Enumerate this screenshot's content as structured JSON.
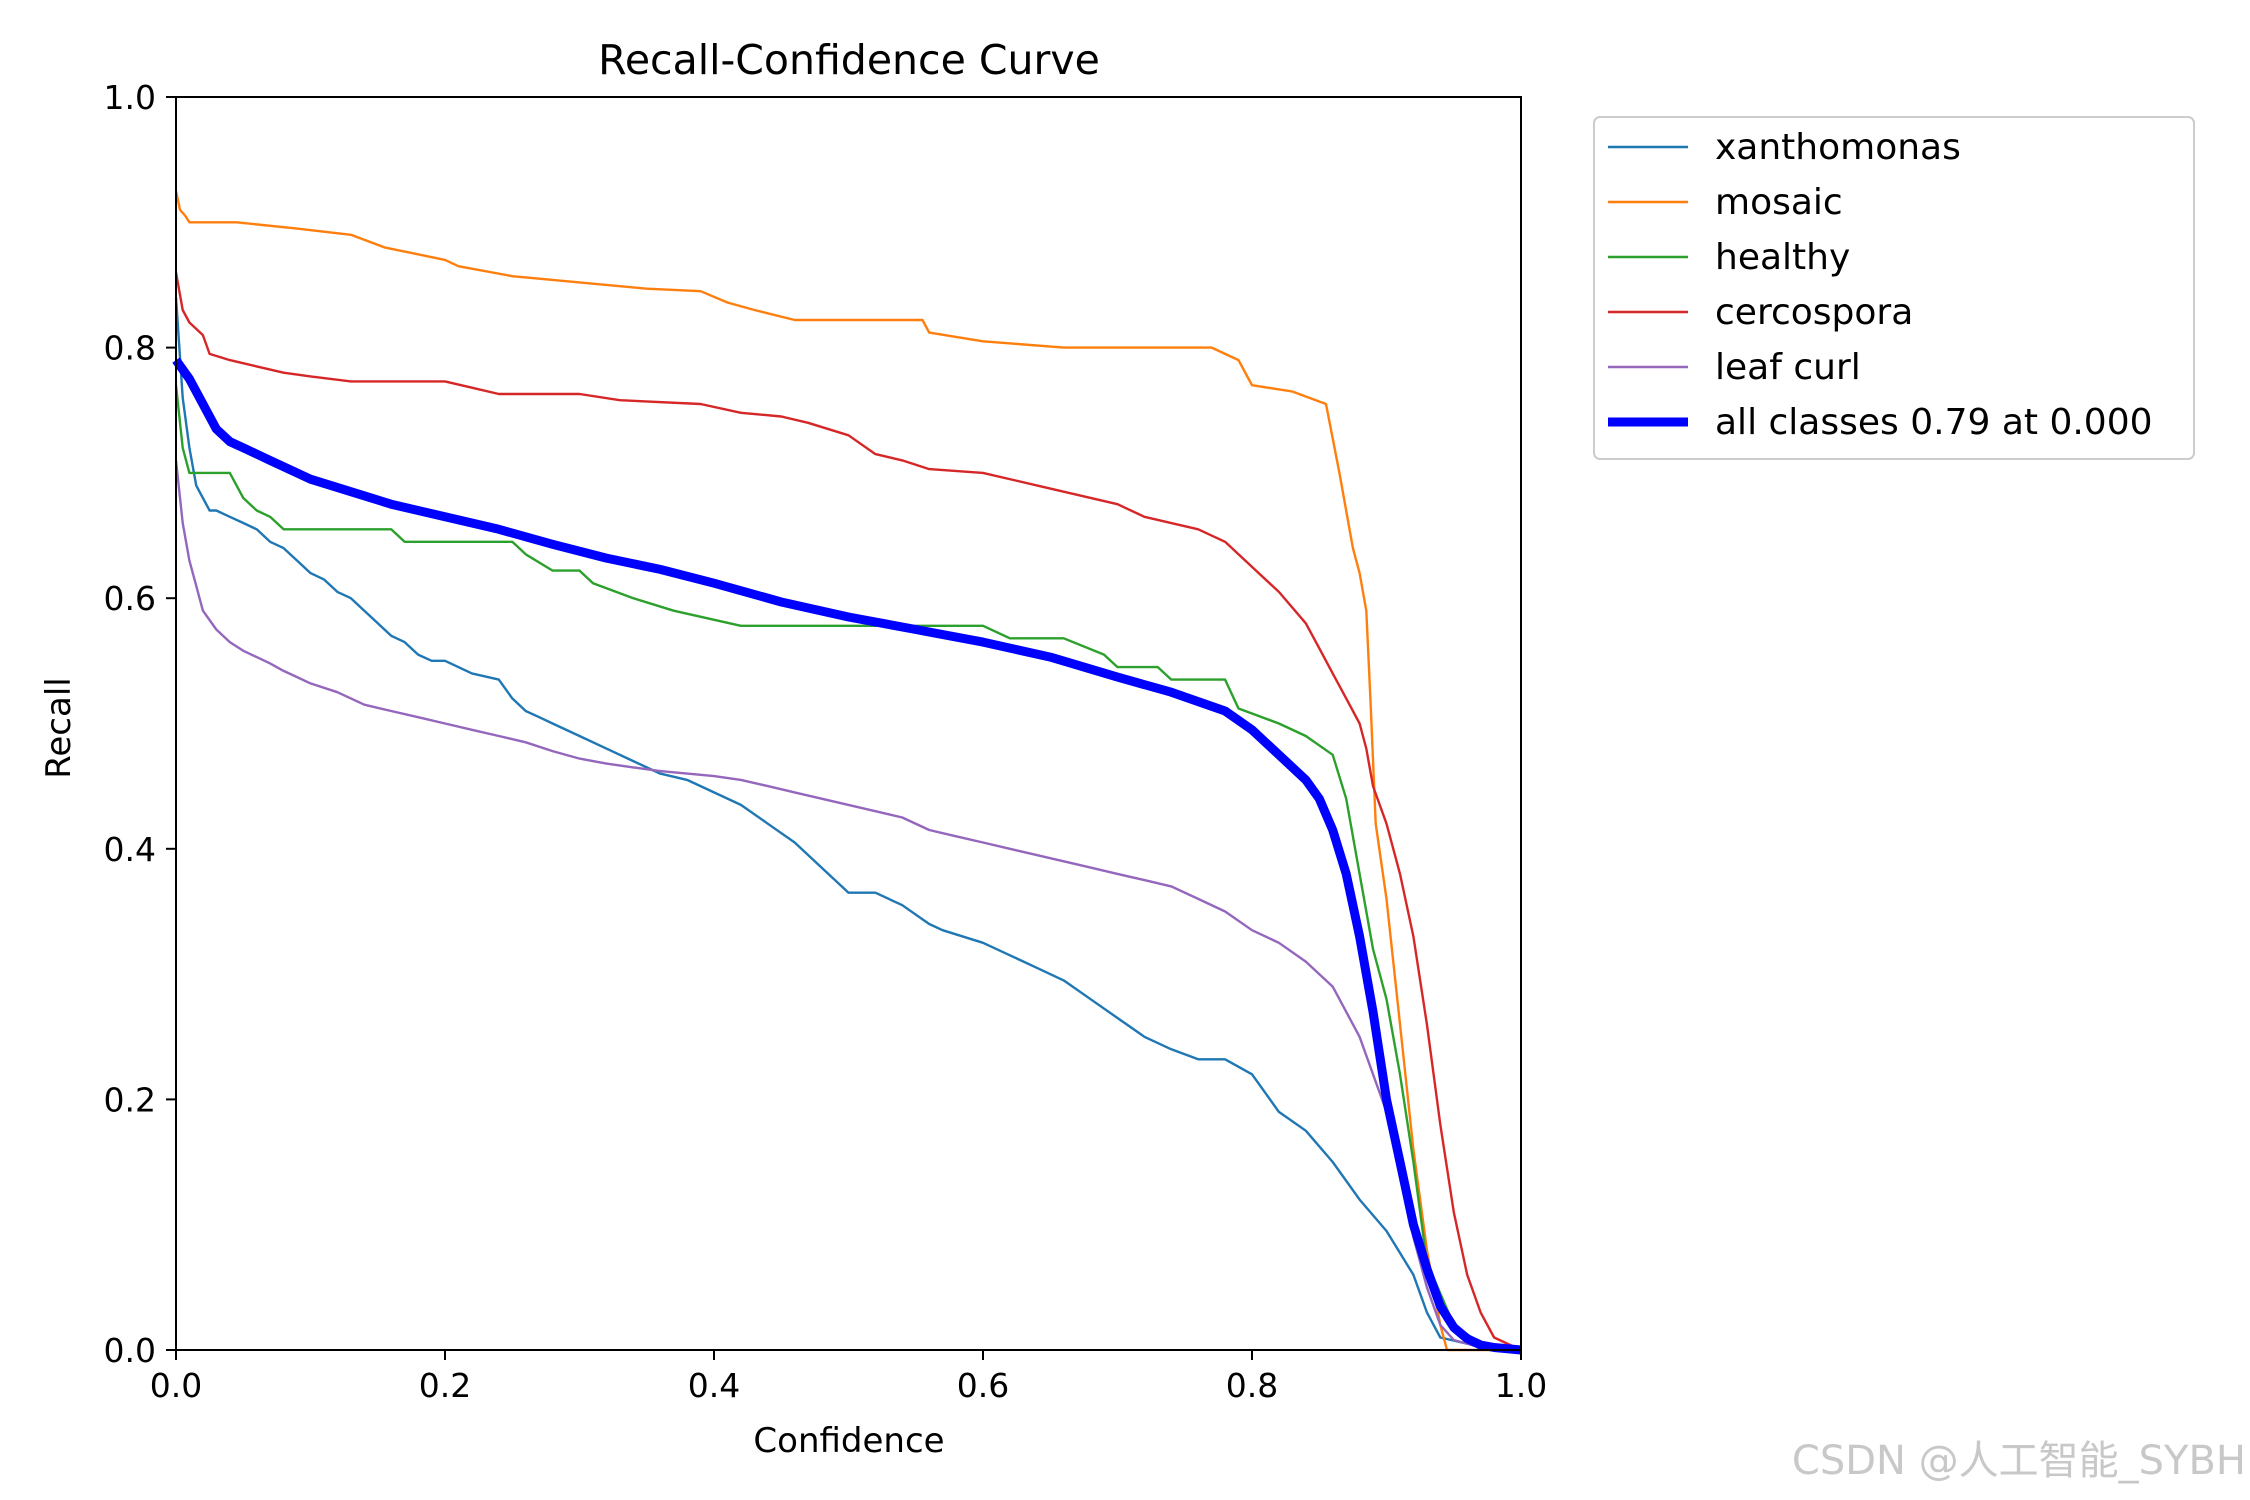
{
  "chart_data": {
    "type": "line",
    "title": "Recall-Confidence Curve",
    "xlabel": "Confidence",
    "ylabel": "Recall",
    "xlim": [
      0,
      1
    ],
    "ylim": [
      0,
      1
    ],
    "xticks": [
      "0.0",
      "0.2",
      "0.4",
      "0.6",
      "0.8",
      "1.0"
    ],
    "yticks": [
      "0.0",
      "0.2",
      "0.4",
      "0.6",
      "0.8",
      "1.0"
    ],
    "legend_position": "outside-top-right",
    "series": [
      {
        "name": "xanthomonas",
        "color": "#1f77b4",
        "x": [
          0,
          0.005,
          0.01,
          0.015,
          0.02,
          0.025,
          0.03,
          0.04,
          0.05,
          0.06,
          0.07,
          0.08,
          0.09,
          0.1,
          0.11,
          0.12,
          0.13,
          0.14,
          0.15,
          0.16,
          0.17,
          0.18,
          0.19,
          0.2,
          0.22,
          0.24,
          0.25,
          0.26,
          0.27,
          0.28,
          0.3,
          0.32,
          0.34,
          0.36,
          0.38,
          0.4,
          0.42,
          0.44,
          0.46,
          0.48,
          0.5,
          0.52,
          0.54,
          0.56,
          0.57,
          0.6,
          0.62,
          0.64,
          0.66,
          0.68,
          0.7,
          0.72,
          0.74,
          0.76,
          0.78,
          0.8,
          0.82,
          0.84,
          0.86,
          0.88,
          0.9,
          0.92,
          0.93,
          0.94,
          0.96,
          0.98,
          1.0
        ],
        "y": [
          0.84,
          0.76,
          0.72,
          0.69,
          0.68,
          0.67,
          0.67,
          0.665,
          0.66,
          0.655,
          0.645,
          0.64,
          0.63,
          0.62,
          0.615,
          0.605,
          0.6,
          0.59,
          0.58,
          0.57,
          0.565,
          0.555,
          0.55,
          0.55,
          0.54,
          0.535,
          0.52,
          0.51,
          0.505,
          0.5,
          0.49,
          0.48,
          0.47,
          0.46,
          0.455,
          0.445,
          0.435,
          0.42,
          0.405,
          0.385,
          0.365,
          0.365,
          0.355,
          0.34,
          0.335,
          0.325,
          0.315,
          0.305,
          0.295,
          0.28,
          0.265,
          0.25,
          0.24,
          0.232,
          0.232,
          0.22,
          0.19,
          0.175,
          0.15,
          0.12,
          0.095,
          0.06,
          0.03,
          0.01,
          0.005,
          0.002,
          0.0
        ]
      },
      {
        "name": "mosaic",
        "color": "#ff7f0e",
        "x": [
          0,
          0.003,
          0.007,
          0.01,
          0.045,
          0.09,
          0.13,
          0.155,
          0.2,
          0.21,
          0.25,
          0.3,
          0.35,
          0.39,
          0.41,
          0.43,
          0.46,
          0.5,
          0.555,
          0.56,
          0.6,
          0.66,
          0.7,
          0.77,
          0.79,
          0.8,
          0.83,
          0.855,
          0.865,
          0.875,
          0.88,
          0.885,
          0.888,
          0.892,
          0.9,
          0.91,
          0.92,
          0.93,
          0.94,
          0.945,
          1.0
        ],
        "y": [
          0.925,
          0.91,
          0.905,
          0.9,
          0.9,
          0.895,
          0.89,
          0.88,
          0.87,
          0.865,
          0.857,
          0.852,
          0.847,
          0.845,
          0.836,
          0.83,
          0.822,
          0.822,
          0.822,
          0.812,
          0.805,
          0.8,
          0.8,
          0.8,
          0.79,
          0.77,
          0.765,
          0.755,
          0.7,
          0.64,
          0.62,
          0.59,
          0.52,
          0.42,
          0.36,
          0.26,
          0.16,
          0.08,
          0.02,
          0.0,
          0.0
        ]
      },
      {
        "name": "healthy",
        "color": "#2ca02c",
        "x": [
          0,
          0.005,
          0.01,
          0.02,
          0.04,
          0.05,
          0.06,
          0.07,
          0.08,
          0.1,
          0.16,
          0.17,
          0.25,
          0.26,
          0.28,
          0.3,
          0.31,
          0.34,
          0.37,
          0.42,
          0.45,
          0.5,
          0.55,
          0.6,
          0.62,
          0.66,
          0.69,
          0.7,
          0.73,
          0.74,
          0.78,
          0.79,
          0.82,
          0.84,
          0.86,
          0.87,
          0.88,
          0.89,
          0.9,
          0.91,
          0.92,
          0.93,
          0.95,
          0.97,
          1.0
        ],
        "y": [
          0.77,
          0.72,
          0.7,
          0.7,
          0.7,
          0.68,
          0.67,
          0.665,
          0.655,
          0.655,
          0.655,
          0.645,
          0.645,
          0.635,
          0.622,
          0.622,
          0.612,
          0.6,
          0.59,
          0.578,
          0.578,
          0.578,
          0.578,
          0.578,
          0.568,
          0.568,
          0.555,
          0.545,
          0.545,
          0.535,
          0.535,
          0.512,
          0.5,
          0.49,
          0.475,
          0.44,
          0.38,
          0.32,
          0.28,
          0.22,
          0.15,
          0.07,
          0.02,
          0.005,
          0.0
        ]
      },
      {
        "name": "cercospora",
        "color": "#d62728",
        "x": [
          0,
          0.005,
          0.01,
          0.02,
          0.025,
          0.04,
          0.06,
          0.08,
          0.1,
          0.13,
          0.2,
          0.22,
          0.24,
          0.3,
          0.33,
          0.39,
          0.42,
          0.45,
          0.47,
          0.5,
          0.52,
          0.54,
          0.56,
          0.6,
          0.64,
          0.66,
          0.7,
          0.72,
          0.76,
          0.78,
          0.8,
          0.82,
          0.84,
          0.85,
          0.86,
          0.87,
          0.88,
          0.885,
          0.89,
          0.9,
          0.91,
          0.92,
          0.93,
          0.94,
          0.95,
          0.96,
          0.97,
          0.98,
          1.0
        ],
        "y": [
          0.86,
          0.83,
          0.82,
          0.81,
          0.795,
          0.79,
          0.785,
          0.78,
          0.777,
          0.773,
          0.773,
          0.768,
          0.763,
          0.763,
          0.758,
          0.755,
          0.748,
          0.745,
          0.74,
          0.73,
          0.715,
          0.71,
          0.703,
          0.7,
          0.69,
          0.685,
          0.675,
          0.665,
          0.655,
          0.645,
          0.625,
          0.605,
          0.58,
          0.56,
          0.54,
          0.52,
          0.5,
          0.48,
          0.45,
          0.42,
          0.38,
          0.33,
          0.26,
          0.18,
          0.11,
          0.06,
          0.03,
          0.01,
          0.0
        ]
      },
      {
        "name": "leaf curl",
        "color": "#9467bd",
        "x": [
          0,
          0.005,
          0.01,
          0.015,
          0.02,
          0.03,
          0.04,
          0.05,
          0.06,
          0.07,
          0.08,
          0.09,
          0.1,
          0.12,
          0.14,
          0.16,
          0.18,
          0.2,
          0.22,
          0.24,
          0.26,
          0.28,
          0.3,
          0.32,
          0.34,
          0.36,
          0.38,
          0.4,
          0.42,
          0.44,
          0.46,
          0.48,
          0.5,
          0.52,
          0.54,
          0.56,
          0.58,
          0.6,
          0.62,
          0.64,
          0.66,
          0.68,
          0.7,
          0.72,
          0.74,
          0.76,
          0.78,
          0.8,
          0.82,
          0.84,
          0.86,
          0.88,
          0.9,
          0.91,
          0.92,
          0.93,
          0.94,
          0.95,
          0.97,
          1.0
        ],
        "y": [
          0.71,
          0.66,
          0.63,
          0.61,
          0.59,
          0.575,
          0.565,
          0.558,
          0.553,
          0.548,
          0.542,
          0.537,
          0.532,
          0.525,
          0.515,
          0.51,
          0.505,
          0.5,
          0.495,
          0.49,
          0.485,
          0.478,
          0.472,
          0.468,
          0.465,
          0.462,
          0.46,
          0.458,
          0.455,
          0.45,
          0.445,
          0.44,
          0.435,
          0.43,
          0.425,
          0.415,
          0.41,
          0.405,
          0.4,
          0.395,
          0.39,
          0.385,
          0.38,
          0.375,
          0.37,
          0.36,
          0.35,
          0.335,
          0.325,
          0.31,
          0.29,
          0.25,
          0.19,
          0.14,
          0.09,
          0.05,
          0.02,
          0.008,
          0.002,
          0.0
        ]
      },
      {
        "name": "all classes 0.79 at 0.000",
        "color": "#0000ff",
        "bold": true,
        "x": [
          0,
          0.01,
          0.02,
          0.03,
          0.04,
          0.05,
          0.07,
          0.1,
          0.13,
          0.16,
          0.2,
          0.24,
          0.28,
          0.32,
          0.36,
          0.4,
          0.45,
          0.5,
          0.55,
          0.6,
          0.65,
          0.7,
          0.74,
          0.78,
          0.8,
          0.82,
          0.84,
          0.85,
          0.86,
          0.87,
          0.88,
          0.89,
          0.9,
          0.91,
          0.92,
          0.93,
          0.94,
          0.95,
          0.96,
          0.97,
          0.98,
          1.0
        ],
        "y": [
          0.79,
          0.775,
          0.755,
          0.735,
          0.725,
          0.72,
          0.71,
          0.695,
          0.685,
          0.675,
          0.665,
          0.655,
          0.643,
          0.632,
          0.623,
          0.612,
          0.597,
          0.585,
          0.575,
          0.565,
          0.553,
          0.537,
          0.525,
          0.51,
          0.495,
          0.475,
          0.455,
          0.44,
          0.415,
          0.38,
          0.33,
          0.27,
          0.2,
          0.15,
          0.1,
          0.065,
          0.035,
          0.018,
          0.009,
          0.004,
          0.002,
          0.0
        ]
      }
    ]
  },
  "watermark": "CSDN @人工智能_SYBH"
}
